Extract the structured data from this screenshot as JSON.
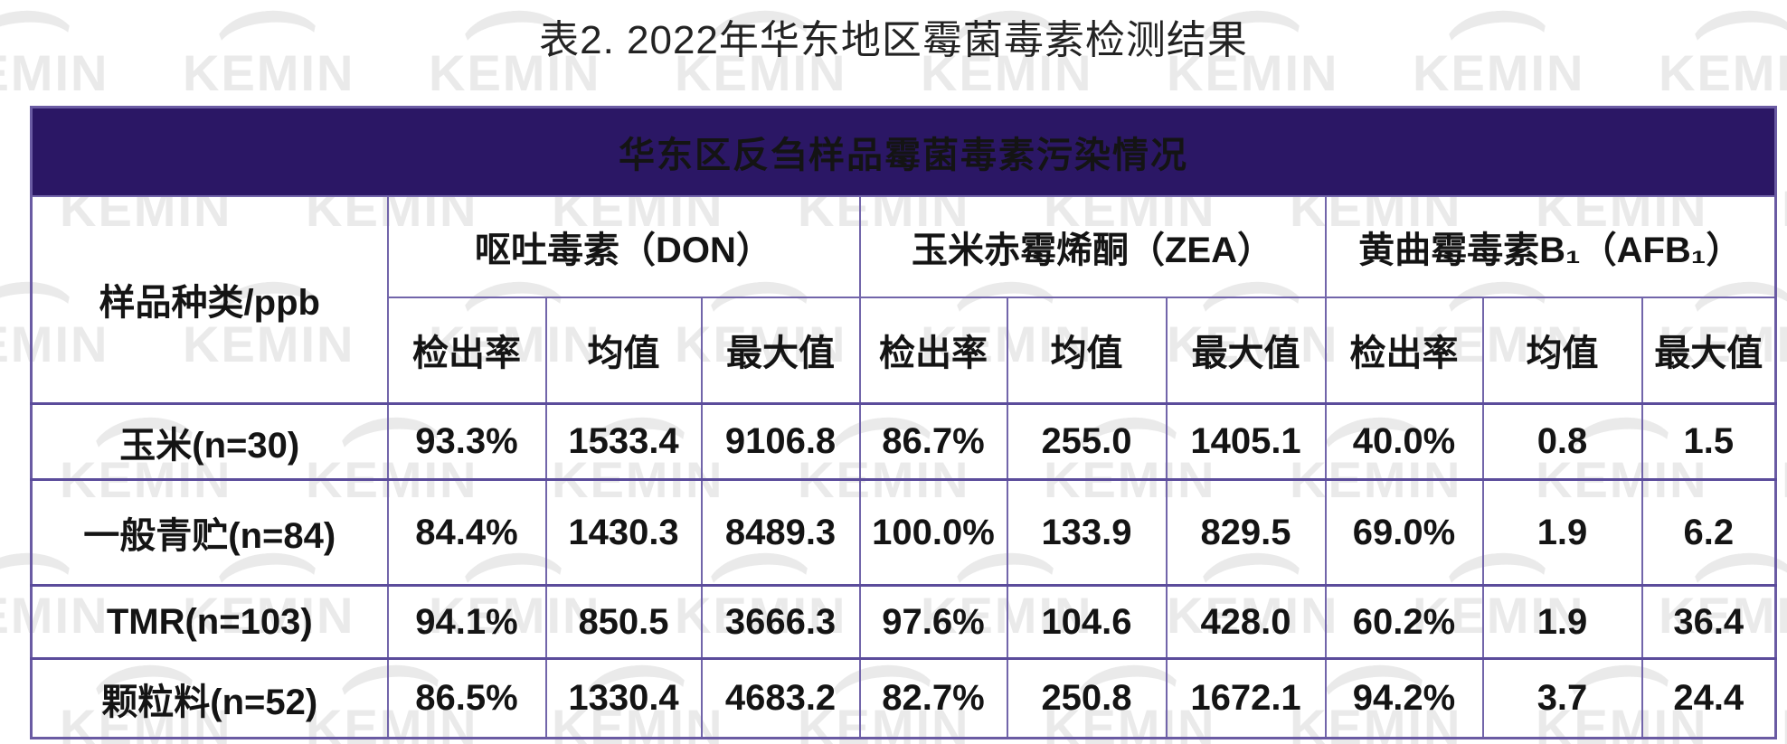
{
  "page": {
    "title": "表2. 2022年华东地区霉菌毒素检测结果"
  },
  "watermark": {
    "text": "KEMIN"
  },
  "colors": {
    "banner_bg": "#2b1765",
    "banner_text": "#ffffff",
    "grid_line": "#7265aa",
    "body_text": "#141414",
    "watermark_gray": "#eaeaea"
  },
  "table": {
    "banner": "华东区反刍样品霉菌毒素污染情况",
    "row_header": "样品种类/ppb",
    "groups": [
      {
        "label": "呕吐毒素（DON）"
      },
      {
        "label": "玉米赤霉烯酮（ZEA）"
      },
      {
        "label": "黄曲霉毒素B₁（AFB₁）"
      }
    ],
    "sub_headers": [
      "检出率",
      "均值",
      "最大值"
    ],
    "rows": [
      {
        "label": "玉米(n=30)",
        "values": [
          "93.3%",
          "1533.4",
          "9106.8",
          "86.7%",
          "255.0",
          "1405.1",
          "40.0%",
          "0.8",
          "1.5"
        ]
      },
      {
        "label": "一般青贮(n=84)",
        "values": [
          "84.4%",
          "1430.3",
          "8489.3",
          "100.0%",
          "133.9",
          "829.5",
          "69.0%",
          "1.9",
          "6.2"
        ]
      },
      {
        "label": "TMR(n=103)",
        "values": [
          "94.1%",
          "850.5",
          "3666.3",
          "97.6%",
          "104.6",
          "428.0",
          "60.2%",
          "1.9",
          "36.4"
        ]
      },
      {
        "label": "颗粒料(n=52)",
        "values": [
          "86.5%",
          "1330.4",
          "4683.2",
          "82.7%",
          "250.8",
          "1672.1",
          "94.2%",
          "3.7",
          "24.4"
        ]
      }
    ]
  }
}
